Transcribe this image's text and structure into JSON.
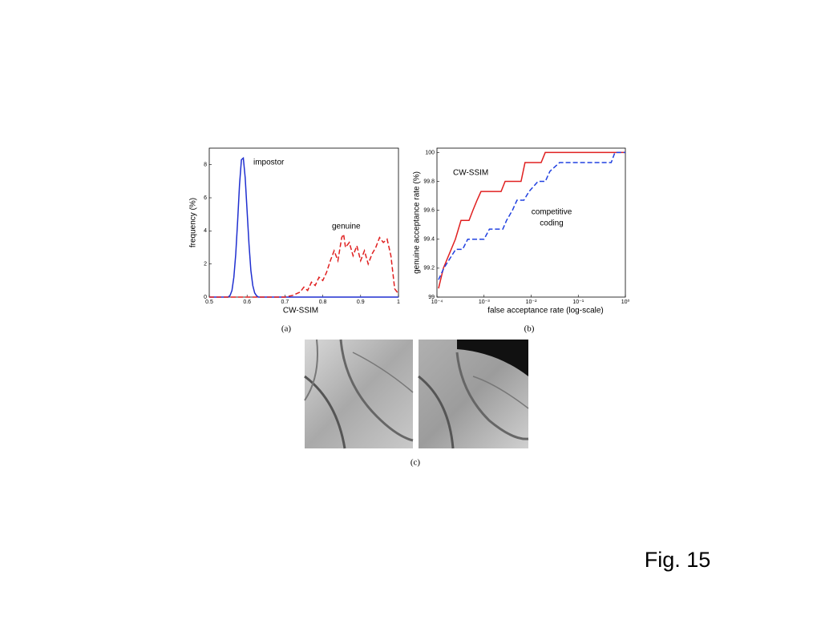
{
  "chart_data": [
    {
      "type": "line",
      "xlabel": "CW-SSIM",
      "ylabel": "frequency (%)",
      "xlim": [
        0.5,
        1
      ],
      "ylim": [
        0,
        9
      ],
      "xticks": [
        0.5,
        0.6,
        0.7,
        0.8,
        0.9,
        1
      ],
      "yticks": [
        0,
        2,
        4,
        6,
        8
      ],
      "annotations": [
        "impostor",
        "genuine"
      ],
      "series": [
        {
          "name": "impostor",
          "color": "#1f2fd0",
          "style": "solid",
          "x": [
            0.5,
            0.55,
            0.555,
            0.56,
            0.565,
            0.57,
            0.575,
            0.58,
            0.585,
            0.59,
            0.595,
            0.6,
            0.605,
            0.61,
            0.615,
            0.62,
            0.625,
            0.63,
            1
          ],
          "values": [
            0,
            0,
            0.1,
            0.4,
            1.2,
            2.6,
            4.6,
            6.8,
            8.3,
            8.4,
            7.2,
            5.2,
            3.2,
            1.6,
            0.7,
            0.25,
            0.08,
            0,
            0
          ]
        },
        {
          "name": "genuine",
          "color": "#e02020",
          "style": "dashed",
          "x": [
            0.5,
            0.7,
            0.72,
            0.74,
            0.75,
            0.76,
            0.77,
            0.78,
            0.79,
            0.8,
            0.81,
            0.82,
            0.83,
            0.84,
            0.85,
            0.855,
            0.86,
            0.87,
            0.88,
            0.89,
            0.9,
            0.91,
            0.92,
            0.93,
            0.94,
            0.95,
            0.96,
            0.97,
            0.98,
            0.99,
            1
          ],
          "values": [
            0,
            0,
            0.1,
            0.3,
            0.6,
            0.4,
            0.9,
            0.7,
            1.2,
            1.0,
            1.5,
            2.2,
            2.8,
            2.2,
            3.6,
            3.8,
            3.0,
            3.3,
            2.5,
            3.1,
            2.2,
            2.8,
            2.0,
            2.6,
            3.0,
            3.6,
            3.3,
            3.5,
            2.5,
            0.5,
            0.2
          ]
        }
      ]
    },
    {
      "type": "line",
      "xlabel": "false acceptance rate (log-scale)",
      "ylabel": "genuine acceptance rate (%)",
      "xscale": "log",
      "xlim": [
        0.0001,
        1
      ],
      "ylim": [
        99,
        100.03
      ],
      "xticks": [
        {
          "value": 0.0001,
          "label": "10⁻⁴"
        },
        {
          "value": 0.001,
          "label": "10⁻³"
        },
        {
          "value": 0.01,
          "label": "10⁻²"
        },
        {
          "value": 0.1,
          "label": "10⁻¹"
        },
        {
          "value": 1,
          "label": "10⁰"
        }
      ],
      "yticks": [
        99,
        99.2,
        99.4,
        99.6,
        99.8,
        100
      ],
      "annotations": [
        "CW-SSIM",
        "competitive",
        "coding"
      ],
      "series": [
        {
          "name": "CW-SSIM",
          "color": "#e02020",
          "style": "solid",
          "x": [
            0.000108,
            0.000137,
            0.000246,
            0.000324,
            0.00048,
            0.00058,
            0.00071,
            0.00086,
            0.0023,
            0.0028,
            0.0061,
            0.0074,
            0.0163,
            0.0199,
            1
          ],
          "values": [
            99.06,
            99.2,
            99.4,
            99.53,
            99.53,
            99.6,
            99.67,
            99.73,
            99.73,
            99.8,
            99.8,
            99.93,
            99.93,
            100,
            100
          ]
        },
        {
          "name": "competitive coding",
          "color": "#2040e0",
          "style": "dashed",
          "x": [
            0.000108,
            0.00014,
            0.00025,
            0.00035,
            0.00045,
            0.001,
            0.0013,
            0.0025,
            0.003,
            0.004,
            0.005,
            0.007,
            0.009,
            0.014,
            0.02,
            0.025,
            0.04,
            0.5,
            0.6,
            1
          ],
          "values": [
            99.12,
            99.2,
            99.33,
            99.33,
            99.4,
            99.4,
            99.47,
            99.47,
            99.53,
            99.6,
            99.67,
            99.67,
            99.73,
            99.8,
            99.8,
            99.87,
            99.93,
            99.93,
            100,
            100
          ]
        }
      ]
    }
  ],
  "captions": [
    "(a)",
    "(b)",
    "(c)"
  ],
  "figure_label": "Fig. 15"
}
